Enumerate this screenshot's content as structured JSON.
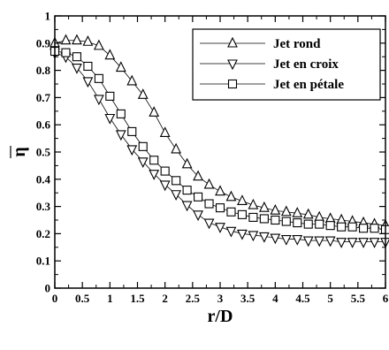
{
  "chart_data": {
    "type": "line",
    "xlabel": "r/D",
    "ylabel": "η",
    "xlim": [
      0,
      6
    ],
    "ylim": [
      0,
      1
    ],
    "xticks": [
      "0",
      "0.5",
      "1",
      "1.5",
      "2",
      "2.5",
      "3",
      "3.5",
      "4",
      "4.5",
      "5",
      "5.5",
      "6"
    ],
    "yticks": [
      "0",
      "0.1",
      "0.2",
      "0.3",
      "0.4",
      "0.5",
      "0.6",
      "0.7",
      "0.8",
      "0.9",
      "1"
    ],
    "legend_position": "top-right",
    "grid": false,
    "x": [
      0,
      0.2,
      0.4,
      0.6,
      0.8,
      1.0,
      1.2,
      1.4,
      1.6,
      1.8,
      2.0,
      2.2,
      2.4,
      2.6,
      2.8,
      3.0,
      3.2,
      3.4,
      3.6,
      3.8,
      4.0,
      4.2,
      4.4,
      4.6,
      4.8,
      5.0,
      5.2,
      5.4,
      5.6,
      5.8,
      6.0
    ],
    "series": [
      {
        "name": "Jet rond",
        "marker": "triangle-up",
        "values": [
          0.9,
          0.91,
          0.91,
          0.905,
          0.89,
          0.855,
          0.81,
          0.76,
          0.71,
          0.645,
          0.57,
          0.51,
          0.455,
          0.41,
          0.38,
          0.355,
          0.335,
          0.32,
          0.305,
          0.295,
          0.285,
          0.28,
          0.275,
          0.27,
          0.26,
          0.255,
          0.25,
          0.245,
          0.24,
          0.235,
          0.23
        ]
      },
      {
        "name": "Jet en croix",
        "marker": "triangle-down",
        "values": [
          0.865,
          0.85,
          0.81,
          0.76,
          0.695,
          0.625,
          0.565,
          0.51,
          0.465,
          0.42,
          0.38,
          0.345,
          0.305,
          0.27,
          0.24,
          0.225,
          0.21,
          0.2,
          0.195,
          0.19,
          0.185,
          0.18,
          0.18,
          0.175,
          0.175,
          0.175,
          0.17,
          0.17,
          0.17,
          0.17,
          0.17
        ]
      },
      {
        "name": "Jet en pétale",
        "marker": "square",
        "values": [
          0.87,
          0.865,
          0.85,
          0.815,
          0.77,
          0.705,
          0.64,
          0.575,
          0.52,
          0.47,
          0.43,
          0.395,
          0.36,
          0.335,
          0.31,
          0.295,
          0.28,
          0.27,
          0.26,
          0.255,
          0.25,
          0.245,
          0.24,
          0.235,
          0.235,
          0.23,
          0.225,
          0.225,
          0.22,
          0.22,
          0.215
        ]
      }
    ]
  }
}
